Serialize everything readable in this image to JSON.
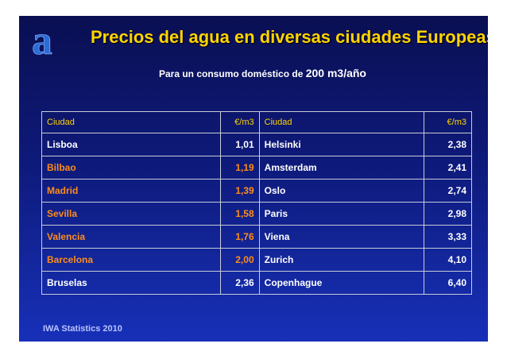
{
  "slide": {
    "title": "Precios del agua en diversas ciudades Europeas",
    "subtitle_prefix": "Para un consumo doméstico de ",
    "subtitle_amount": "200 m3/año",
    "logo_letter": "a",
    "source": "IWA Statistics 2010"
  },
  "table": {
    "headers": [
      "Ciudad",
      "€/m3",
      "Ciudad",
      "€/m3"
    ],
    "rows": [
      {
        "city1": "Lisboa",
        "val1": "1,01",
        "city2": "Helsinki",
        "val2": "2,38",
        "highlight": false
      },
      {
        "city1": "Bilbao",
        "val1": "1,19",
        "city2": "Amsterdam",
        "val2": "2,41",
        "highlight": true
      },
      {
        "city1": "Madrid",
        "val1": "1,39",
        "city2": "Oslo",
        "val2": "2,74",
        "highlight": true
      },
      {
        "city1": "Sevilla",
        "val1": "1,58",
        "city2": "Paris",
        "val2": "2,98",
        "highlight": true
      },
      {
        "city1": "Valencia",
        "val1": "1,76",
        "city2": "Viena",
        "val2": "3,33",
        "highlight": true
      },
      {
        "city1": "Barcelona",
        "val1": "2,00",
        "city2": "Zurich",
        "val2": "4,10",
        "highlight": true
      },
      {
        "city1": "Bruselas",
        "val1": "2,36",
        "city2": "Copenhague",
        "val2": "6,40",
        "highlight": false
      }
    ]
  },
  "colors": {
    "title": "#ffd400",
    "highlight": "#ff8c1a",
    "background": "#0e1a7a"
  }
}
